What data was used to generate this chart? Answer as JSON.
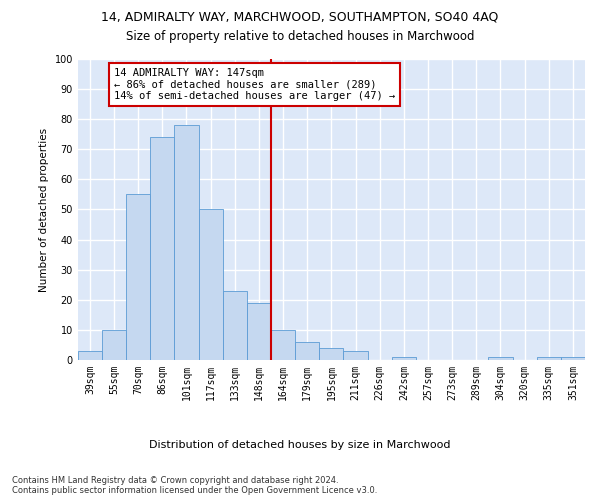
{
  "title_line1": "14, ADMIRALTY WAY, MARCHWOOD, SOUTHAMPTON, SO40 4AQ",
  "title_line2": "Size of property relative to detached houses in Marchwood",
  "xlabel": "Distribution of detached houses by size in Marchwood",
  "ylabel": "Number of detached properties",
  "categories": [
    "39sqm",
    "55sqm",
    "70sqm",
    "86sqm",
    "101sqm",
    "117sqm",
    "133sqm",
    "148sqm",
    "164sqm",
    "179sqm",
    "195sqm",
    "211sqm",
    "226sqm",
    "242sqm",
    "257sqm",
    "273sqm",
    "289sqm",
    "304sqm",
    "320sqm",
    "335sqm",
    "351sqm"
  ],
  "values": [
    3,
    10,
    55,
    74,
    78,
    50,
    23,
    19,
    10,
    6,
    4,
    3,
    0,
    1,
    0,
    0,
    0,
    1,
    0,
    1,
    1
  ],
  "bar_color": "#c5d8f0",
  "bar_edge_color": "#5b9bd5",
  "vline_x": 7.5,
  "vline_color": "#cc0000",
  "annotation_text": "14 ADMIRALTY WAY: 147sqm\n← 86% of detached houses are smaller (289)\n14% of semi-detached houses are larger (47) →",
  "annotation_box_color": "#ffffff",
  "annotation_box_edge": "#cc0000",
  "ylim": [
    0,
    100
  ],
  "yticks": [
    0,
    10,
    20,
    30,
    40,
    50,
    60,
    70,
    80,
    90,
    100
  ],
  "footnote": "Contains HM Land Registry data © Crown copyright and database right 2024.\nContains public sector information licensed under the Open Government Licence v3.0.",
  "background_color": "#dde8f8",
  "grid_color": "#ffffff",
  "title1_fontsize": 9,
  "title2_fontsize": 8.5,
  "xlabel_fontsize": 8,
  "ylabel_fontsize": 7.5,
  "tick_fontsize": 7,
  "footnote_fontsize": 6,
  "annotation_fontsize": 7.5
}
